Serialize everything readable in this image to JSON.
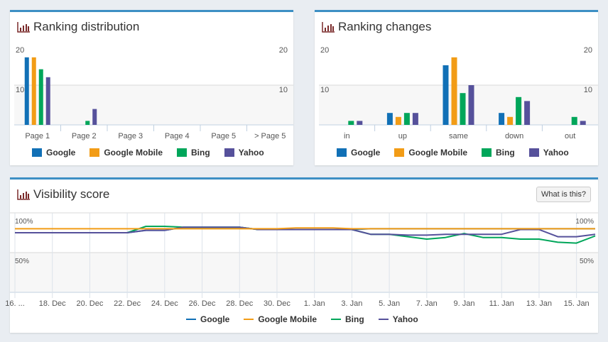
{
  "colors": {
    "Google": "#1170b6",
    "Google Mobile": "#f29c16",
    "Bing": "#00a65a",
    "Yahoo": "#56519b"
  },
  "panels": {
    "distribution": {
      "title": "Ranking distribution",
      "icon": "bar-chart-icon"
    },
    "changes": {
      "title": "Ranking changes",
      "icon": "bar-chart-icon"
    },
    "visibility": {
      "title": "Visibility score",
      "icon": "bar-chart-icon",
      "help_button": "What is this?"
    }
  },
  "legend": [
    "Google",
    "Google Mobile",
    "Bing",
    "Yahoo"
  ],
  "chart_data": [
    {
      "type": "bar",
      "title": "Ranking distribution",
      "categories": [
        "Page 1",
        "Page 2",
        "Page 3",
        "Page 4",
        "Page 5",
        "> Page 5"
      ],
      "ylim": [
        0,
        20
      ],
      "yticks": [
        "10",
        "20"
      ],
      "grid": true,
      "legend": "bottom",
      "series": [
        {
          "name": "Google",
          "values": [
            17,
            0,
            0,
            0,
            0,
            0
          ]
        },
        {
          "name": "Google Mobile",
          "values": [
            17,
            0,
            0,
            0,
            0,
            0
          ]
        },
        {
          "name": "Bing",
          "values": [
            14,
            1,
            0,
            0,
            0,
            0
          ]
        },
        {
          "name": "Yahoo",
          "values": [
            12,
            4,
            0,
            0,
            0,
            0
          ]
        }
      ]
    },
    {
      "type": "bar",
      "title": "Ranking changes",
      "categories": [
        "in",
        "up",
        "same",
        "down",
        "out"
      ],
      "ylim": [
        0,
        20
      ],
      "yticks": [
        "10",
        "20"
      ],
      "grid": true,
      "legend": "bottom",
      "series": [
        {
          "name": "Google",
          "values": [
            0,
            3,
            15,
            3,
            0
          ]
        },
        {
          "name": "Google Mobile",
          "values": [
            0,
            2,
            17,
            2,
            0
          ]
        },
        {
          "name": "Bing",
          "values": [
            1,
            3,
            8,
            7,
            2
          ]
        },
        {
          "name": "Yahoo",
          "values": [
            1,
            3,
            10,
            6,
            1
          ]
        }
      ]
    },
    {
      "type": "line",
      "title": "Visibility score",
      "x_start": "16. Dec",
      "x_end": "16. Jan",
      "xticks": [
        "16. ...",
        "18. Dec",
        "20. Dec",
        "22. Dec",
        "24. Dec",
        "26. Dec",
        "28. Dec",
        "30. Dec",
        "1. Jan",
        "3. Jan",
        "5. Jan",
        "7. Jan",
        "9. Jan",
        "11. Jan",
        "13. Jan",
        "15. Jan"
      ],
      "yticks": [
        "50%",
        "100%"
      ],
      "ylim": [
        0,
        100
      ],
      "grid": true,
      "legend": "bottom",
      "series": [
        {
          "name": "Google",
          "values": [
            75,
            75,
            75,
            75,
            75,
            75,
            75,
            78,
            78,
            82,
            82,
            82,
            82,
            79,
            79,
            79,
            79,
            79,
            79,
            80,
            80,
            80,
            80,
            80,
            80,
            80,
            80,
            80,
            80,
            80,
            80,
            80
          ]
        },
        {
          "name": "Google Mobile",
          "values": [
            80,
            80,
            80,
            80,
            80,
            80,
            80,
            80,
            80,
            80,
            80,
            80,
            80,
            80,
            80,
            81,
            81,
            81,
            80,
            80,
            80,
            80,
            80,
            80,
            80,
            80,
            80,
            80,
            80,
            80,
            80,
            80
          ]
        },
        {
          "name": "Bing",
          "values": [
            75,
            75,
            75,
            75,
            75,
            75,
            75,
            83,
            83,
            82,
            82,
            82,
            82,
            79,
            79,
            79,
            79,
            79,
            79,
            73,
            73,
            70,
            67,
            69,
            74,
            69,
            69,
            67,
            67,
            63,
            62,
            71
          ]
        },
        {
          "name": "Yahoo",
          "values": [
            75,
            75,
            75,
            75,
            75,
            75,
            75,
            78,
            78,
            82,
            82,
            82,
            82,
            79,
            79,
            79,
            79,
            79,
            79,
            73,
            73,
            72,
            72,
            73,
            73,
            73,
            73,
            79,
            79,
            70,
            70,
            73
          ]
        }
      ]
    }
  ]
}
